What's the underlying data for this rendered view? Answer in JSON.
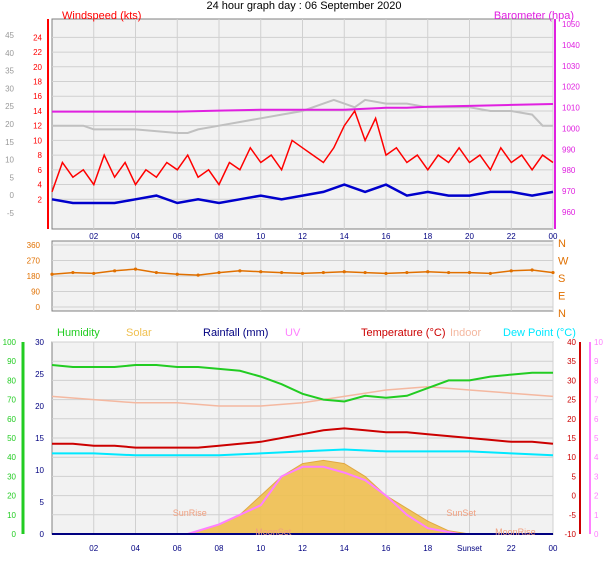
{
  "title": "24 hour graph day : 06 September 2020",
  "colors": {
    "background": "#ffffff",
    "panel_bg": "#f2f2f2",
    "grid": "#d0d0d0",
    "windspeed": "#ff0000",
    "windspeed_avg": "#0000cc",
    "gust_band": "#c0c0c0",
    "barometer": "#e020e0",
    "wind_dir": "#e07000",
    "humidity": "#22cc22",
    "solar": "#f0c050",
    "rainfall": "#000080",
    "uv": "#ff80ff",
    "temperature": "#cc0000",
    "indoor": "#f4b8a0",
    "dew_point": "#00e8ff",
    "event_label": "#f0a080"
  },
  "chart_data": [
    {
      "type": "line",
      "panel": "wind",
      "left_label": "Windspeed (kts)",
      "right_label": "Barometer (hpa)",
      "x_ticks": [
        "02",
        "04",
        "06",
        "08",
        "10",
        "12",
        "14",
        "16",
        "18",
        "20",
        "22",
        "00"
      ],
      "x_range_hours": [
        0,
        24
      ],
      "y_left_outer_ticks": [
        "-5",
        "0",
        "5",
        "10",
        "15",
        "20",
        "25",
        "30",
        "35",
        "40",
        "45"
      ],
      "y_left_ticks": [
        "2",
        "4",
        "6",
        "8",
        "10",
        "12",
        "14",
        "16",
        "18",
        "20",
        "22",
        "24"
      ],
      "y_left_range": [
        0,
        25
      ],
      "y_right_ticks": [
        "960",
        "970",
        "980",
        "990",
        "1000",
        "1010",
        "1020",
        "1030",
        "1040",
        "1050"
      ],
      "y_right_range": [
        955,
        1052
      ],
      "grid": true,
      "series": [
        {
          "role": "barometer",
          "axis": "right",
          "x": [
            0,
            2,
            4,
            6,
            8,
            10,
            12,
            13,
            14,
            15,
            16,
            17,
            18,
            20,
            22,
            24
          ],
          "y": [
            1009,
            1009,
            1009,
            1009,
            1009.5,
            1010,
            1010,
            1010,
            1010,
            1010.5,
            1011,
            1011,
            1011.5,
            1012,
            1012.5,
            1013
          ]
        },
        {
          "role": "pressure-reference",
          "axis": "left",
          "x": [
            0,
            1.5,
            2,
            4,
            6,
            6.5,
            7,
            8,
            9,
            10,
            11,
            12,
            13,
            13.5,
            14,
            14.5,
            15,
            16,
            17,
            18,
            19,
            20,
            21,
            22,
            23,
            23.5,
            24
          ],
          "y": [
            12,
            12,
            11.5,
            11.5,
            11,
            11,
            11.5,
            12,
            12.5,
            13,
            13.5,
            14,
            15,
            15.5,
            15,
            14.5,
            15.5,
            15,
            15,
            14.5,
            14.5,
            14.5,
            14,
            14,
            13.5,
            12,
            12
          ]
        },
        {
          "role": "windspeed",
          "axis": "left",
          "x": [
            0,
            0.5,
            1,
            1.5,
            2,
            2.5,
            3,
            3.5,
            4,
            4.5,
            5,
            5.5,
            6,
            6.5,
            7,
            7.5,
            8,
            8.5,
            9,
            9.5,
            10,
            10.5,
            11,
            11.5,
            12,
            12.5,
            13,
            13.5,
            14,
            14.5,
            15,
            15.5,
            16,
            16.5,
            17,
            17.5,
            18,
            18.5,
            19,
            19.5,
            20,
            20.5,
            21,
            21.5,
            22,
            22.5,
            23,
            23.5,
            24
          ],
          "y": [
            3,
            7,
            5,
            6,
            4,
            8,
            5,
            7,
            4,
            6,
            5,
            7,
            6,
            8,
            5,
            6,
            4,
            7,
            6,
            9,
            7,
            8,
            6,
            10,
            9,
            8,
            7,
            9,
            12,
            14,
            10,
            13,
            8,
            9,
            7,
            8,
            6,
            8,
            7,
            9,
            7,
            8,
            6,
            9,
            7,
            8,
            6,
            8,
            7
          ]
        },
        {
          "role": "windspeed-average",
          "axis": "left",
          "x": [
            0,
            1,
            2,
            3,
            4,
            5,
            6,
            7,
            8,
            9,
            10,
            11,
            12,
            13,
            14,
            15,
            16,
            17,
            18,
            19,
            20,
            21,
            22,
            23,
            24
          ],
          "y": [
            2,
            1.5,
            1.5,
            1.5,
            2,
            2.5,
            1.5,
            2,
            1.5,
            2,
            2.5,
            2,
            2.5,
            3,
            4,
            3,
            4,
            2.5,
            3,
            2.5,
            2.5,
            3,
            3,
            2.5,
            3
          ]
        }
      ]
    },
    {
      "type": "scatter",
      "panel": "wind-direction",
      "y_ticks": [
        "0",
        "90",
        "180",
        "270",
        "360"
      ],
      "y_range": [
        0,
        360
      ],
      "y_right_labels": [
        "N",
        "W",
        "S",
        "E",
        "N"
      ],
      "x_range_hours": [
        0,
        24
      ],
      "grid": true,
      "series": [
        {
          "role": "wind-direction",
          "x": [
            0,
            1,
            2,
            3,
            4,
            5,
            6,
            7,
            8,
            9,
            10,
            11,
            12,
            13,
            14,
            15,
            16,
            17,
            18,
            19,
            20,
            21,
            22,
            23,
            24
          ],
          "y": [
            190,
            200,
            195,
            210,
            220,
            200,
            190,
            185,
            200,
            210,
            205,
            200,
            195,
            200,
            205,
            200,
            195,
            200,
            205,
            200,
            200,
            195,
            210,
            215,
            200
          ]
        }
      ]
    },
    {
      "type": "line",
      "panel": "thermo",
      "legend": [
        "Humidity",
        "Solar",
        "Rainfall (mm)",
        "UV",
        "Temperature (°C)",
        "Indoor",
        "Dew Point (°C)"
      ],
      "x_ticks": [
        "02",
        "04",
        "06",
        "08",
        "10",
        "12",
        "14",
        "16",
        "18",
        "Sunset",
        "22",
        "00"
      ],
      "x_tick_hours": [
        2,
        4,
        6,
        8,
        10,
        12,
        14,
        16,
        18,
        20,
        22,
        24
      ],
      "x_range_hours": [
        0,
        24
      ],
      "y_humidity_ticks": [
        "0",
        "10",
        "20",
        "30",
        "40",
        "50",
        "60",
        "70",
        "80",
        "90",
        "100"
      ],
      "y_humidity_range": [
        0,
        100
      ],
      "y_main_ticks": [
        "0",
        "5",
        "10",
        "15",
        "20",
        "25",
        "30"
      ],
      "y_main_range": [
        0,
        30
      ],
      "y_temp_ticks": [
        "-10",
        "-5",
        "0",
        "5",
        "10",
        "15",
        "20",
        "25",
        "30",
        "35",
        "40"
      ],
      "y_temp_range": [
        -10,
        40
      ],
      "y_uv_ticks": [
        "0",
        "1",
        "2",
        "3",
        "4",
        "5",
        "6",
        "7",
        "8",
        "9",
        "10"
      ],
      "y_uv_range": [
        0,
        10
      ],
      "annotations": [
        {
          "text": "SunRise",
          "hour": 6.6
        },
        {
          "text": "MoonSet",
          "hour": 10.6
        },
        {
          "text": "SunSet",
          "hour": 19.6
        },
        {
          "text": "MoonRise",
          "hour": 22.2
        }
      ],
      "grid": true,
      "series": [
        {
          "role": "humidity",
          "axis": "humidity",
          "x": [
            0,
            1,
            2,
            3,
            4,
            5,
            6,
            7,
            8,
            9,
            10,
            11,
            12,
            13,
            14,
            15,
            16,
            17,
            18,
            19,
            20,
            21,
            22,
            23,
            24
          ],
          "y": [
            88,
            87,
            87,
            87,
            88,
            88,
            87,
            87,
            86,
            85,
            82,
            78,
            73,
            70,
            69,
            72,
            71,
            72,
            76,
            80,
            80,
            82,
            83,
            84,
            84
          ]
        },
        {
          "role": "indoor",
          "axis": "main",
          "x": [
            0,
            2,
            4,
            6,
            8,
            10,
            12,
            14,
            16,
            18,
            20,
            22,
            24
          ],
          "y": [
            21.5,
            21,
            20.5,
            20.5,
            20,
            20,
            20.5,
            21.5,
            22.5,
            23,
            22.5,
            22,
            21.5
          ]
        },
        {
          "role": "temperature",
          "axis": "temperature",
          "x": [
            0,
            1,
            2,
            3,
            4,
            5,
            6,
            7,
            8,
            9,
            10,
            11,
            12,
            13,
            14,
            15,
            16,
            17,
            18,
            19,
            20,
            21,
            22,
            23,
            24
          ],
          "y": [
            13.5,
            13.5,
            13,
            13,
            12.5,
            12.5,
            12.5,
            12.5,
            13,
            13.5,
            14,
            15,
            16,
            17,
            17.5,
            17,
            16.5,
            16.5,
            16,
            15.5,
            15,
            14.5,
            14,
            14,
            13.5
          ]
        },
        {
          "role": "dew-point",
          "axis": "temperature",
          "x": [
            0,
            2,
            4,
            6,
            8,
            10,
            12,
            14,
            16,
            18,
            20,
            22,
            24
          ],
          "y": [
            11,
            11,
            10.5,
            10.5,
            10.5,
            11,
            11.5,
            12,
            11.5,
            11.5,
            11.5,
            11,
            10.5
          ]
        },
        {
          "role": "solar",
          "axis": "main",
          "x": [
            6.5,
            7,
            8,
            9,
            10,
            11,
            12,
            13,
            14,
            15,
            16,
            17,
            18,
            19,
            20
          ],
          "y": [
            0,
            0.5,
            1.5,
            3,
            6,
            9,
            11,
            11.5,
            11,
            9,
            6,
            4,
            2,
            0.5,
            0
          ]
        },
        {
          "role": "uv",
          "axis": "uv",
          "x": [
            6.5,
            8,
            10,
            11,
            12,
            13,
            14,
            15,
            16,
            17,
            18,
            19.5
          ],
          "y": [
            0,
            0.5,
            1.5,
            3,
            3.5,
            3.5,
            3.2,
            2.8,
            2,
            1,
            0.3,
            0
          ]
        },
        {
          "role": "rainfall",
          "axis": "main",
          "x": [
            0,
            24
          ],
          "y": [
            0,
            0
          ]
        }
      ]
    }
  ]
}
